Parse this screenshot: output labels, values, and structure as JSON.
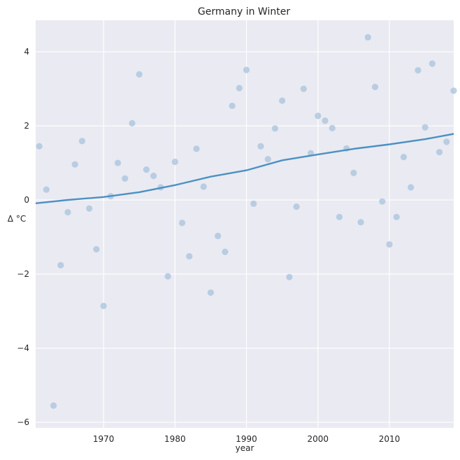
{
  "chart_data": {
    "type": "scatter",
    "title": "Germany in Winter",
    "xlabel": "year",
    "ylabel": "Δ °C",
    "xlim": [
      1960.5,
      2019
    ],
    "ylim": [
      -6.15,
      4.85
    ],
    "xticks": [
      1970,
      1980,
      1990,
      2000,
      2010
    ],
    "yticks": [
      -6,
      -4,
      -2,
      0,
      2,
      4
    ],
    "grid": true,
    "background": "#eaeaf2",
    "colors": {
      "points": "#a7c3dc",
      "trend": "#4b91c3"
    },
    "series": [
      {
        "kind": "points",
        "x": [
          1961,
          1962,
          1963,
          1964,
          1965,
          1966,
          1967,
          1968,
          1969,
          1970,
          1971,
          1972,
          1973,
          1974,
          1975,
          1976,
          1977,
          1978,
          1979,
          1980,
          1981,
          1982,
          1983,
          1984,
          1985,
          1986,
          1987,
          1988,
          1989,
          1990,
          1991,
          1992,
          1993,
          1994,
          1995,
          1996,
          1997,
          1998,
          1999,
          2000,
          2001,
          2002,
          2003,
          2004,
          2005,
          2006,
          2007,
          2008,
          2009,
          2010,
          2011,
          2012,
          2013,
          2014,
          2015,
          2016,
          2017,
          2018,
          2019
        ],
        "y": [
          1.45,
          0.28,
          -5.55,
          -1.76,
          -0.33,
          0.96,
          1.59,
          -0.23,
          -1.33,
          -2.86,
          0.1,
          1.0,
          0.58,
          2.07,
          3.39,
          0.82,
          0.65,
          0.34,
          -2.06,
          1.03,
          -0.62,
          -1.52,
          1.38,
          0.36,
          -2.5,
          -0.97,
          -1.4,
          2.54,
          3.02,
          3.51,
          -0.1,
          1.45,
          1.1,
          1.93,
          2.68,
          -2.08,
          -0.18,
          3.0,
          1.26,
          2.27,
          2.14,
          1.94,
          -0.46,
          1.39,
          0.73,
          -0.6,
          4.39,
          3.05,
          -0.04,
          -1.2,
          -0.46,
          1.16,
          0.34,
          3.5,
          1.96,
          3.68,
          1.29,
          1.57,
          2.95
        ]
      },
      {
        "kind": "trend",
        "x": [
          1960,
          1965,
          1970,
          1975,
          1980,
          1985,
          1990,
          1995,
          2000,
          2005,
          2010,
          2015,
          2020
        ],
        "y": [
          -0.1,
          -0.0,
          0.08,
          0.21,
          0.4,
          0.63,
          0.8,
          1.07,
          1.23,
          1.38,
          1.5,
          1.64,
          1.82
        ]
      }
    ]
  }
}
